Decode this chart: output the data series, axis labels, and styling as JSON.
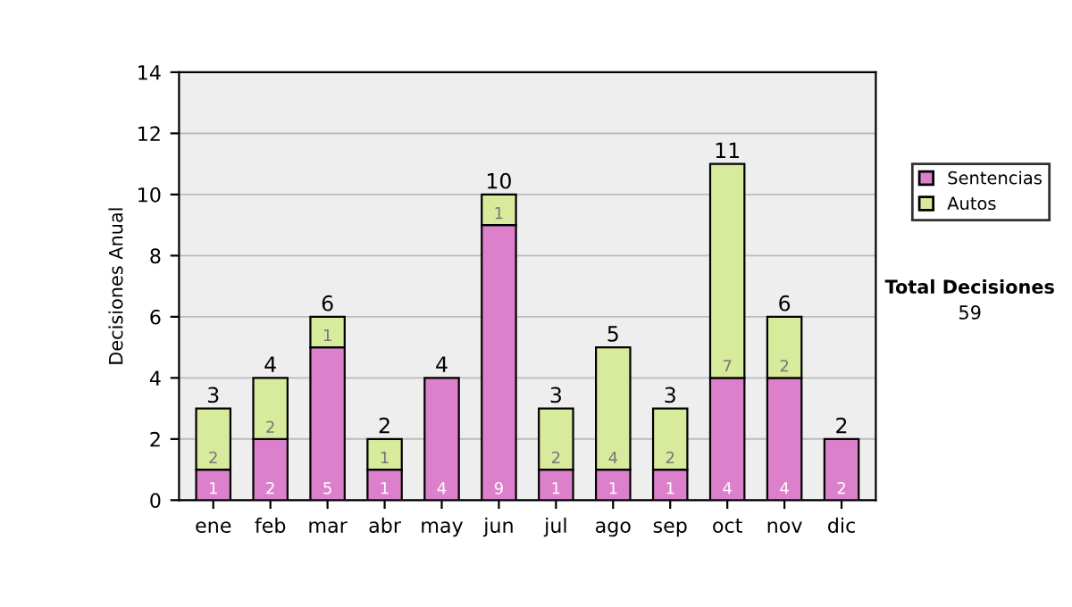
{
  "chart_data": {
    "type": "bar",
    "stacked": true,
    "ylabel": "Decisiones Anual",
    "categories": [
      "ene",
      "feb",
      "mar",
      "abr",
      "may",
      "jun",
      "jul",
      "ago",
      "sep",
      "oct",
      "nov",
      "dic"
    ],
    "series": [
      {
        "name": "Sentencias",
        "color": "#dd80cc",
        "values": [
          1,
          2,
          5,
          1,
          4,
          9,
          1,
          1,
          1,
          4,
          4,
          2
        ],
        "value_labels": [
          "1",
          "2",
          "5",
          "1",
          "4",
          "9",
          "1",
          "1",
          "1",
          "4",
          "4",
          "2"
        ]
      },
      {
        "name": "Autos",
        "color": "#d8eb9c",
        "values": [
          2,
          2,
          1,
          1,
          0,
          1,
          2,
          4,
          2,
          7,
          2,
          0
        ],
        "value_labels": [
          "2",
          "2",
          "1",
          "1",
          null,
          "1",
          "2",
          "4",
          "2",
          "7",
          "2",
          null
        ]
      }
    ],
    "totals": [
      "3",
      "4",
      "6",
      "2",
      "4",
      "10",
      "3",
      "5",
      "3",
      "11",
      "6",
      "2"
    ],
    "ylim": [
      0,
      14
    ],
    "yticks": [
      0,
      2,
      4,
      6,
      8,
      10,
      12,
      14
    ],
    "grid": "y",
    "legend": "right",
    "annotations": [
      "Total Decisiones",
      "59"
    ]
  }
}
